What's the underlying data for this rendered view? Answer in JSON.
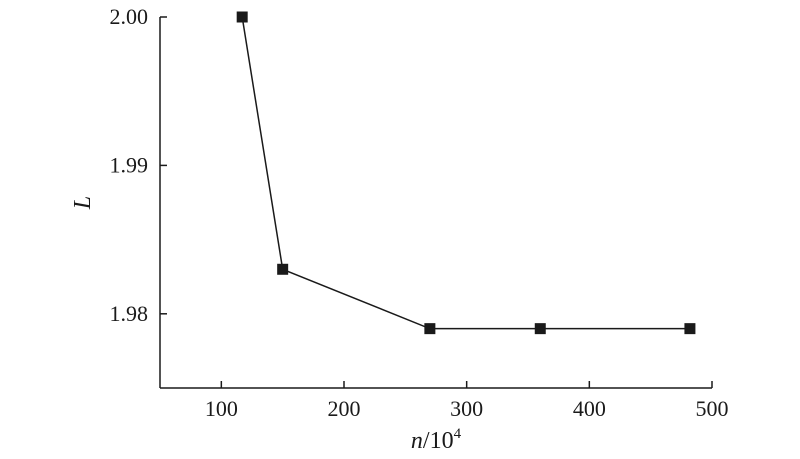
{
  "chart_data": {
    "type": "line",
    "xlabel": {
      "var": "n",
      "rest": "/10",
      "sup": "4"
    },
    "ylabel": "L",
    "xlim": [
      50,
      500
    ],
    "ylim": [
      1.975,
      2.0
    ],
    "xticks": [
      100,
      200,
      300,
      400,
      500
    ],
    "yticks": [
      1.98,
      1.99,
      2.0
    ],
    "ytick_labels": [
      "1.98",
      "1.99",
      "2.00"
    ],
    "marker": "square",
    "series": [
      {
        "x": [
          117,
          150,
          270,
          360,
          482
        ],
        "y": [
          2.0,
          1.983,
          1.979,
          1.979,
          1.979
        ]
      }
    ],
    "colors": {
      "line": "#1a1a1a",
      "marker": "#1a1a1a"
    }
  }
}
